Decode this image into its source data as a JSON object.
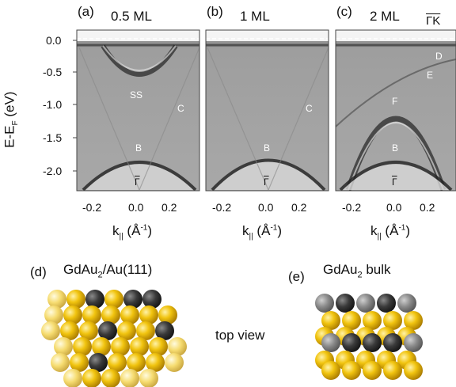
{
  "figure": {
    "panels": [
      {
        "id": "a",
        "tag": "(a)",
        "coverage": "0.5 ML",
        "labels": {
          "ss": "SS",
          "c": "C",
          "b": "B",
          "gamma": "Γ"
        }
      },
      {
        "id": "b",
        "tag": "(b)",
        "coverage": "1 ML",
        "labels": {
          "c": "C",
          "b": "B",
          "gamma": "Γ"
        }
      },
      {
        "id": "c",
        "tag": "(c)",
        "coverage": "2 ML",
        "labels": {
          "d": "D",
          "e": "E",
          "f": "F",
          "b": "B",
          "gamma": "Γ",
          "direction": "ΓK"
        }
      }
    ],
    "y_axis": {
      "label_main": "E-E",
      "label_sub": "F",
      "label_unit": " (eV)",
      "ticks": [
        "0.0",
        "-0.5",
        "-1.0",
        "-1.5",
        "-2.0"
      ]
    },
    "x_axis": {
      "label_main": "k",
      "label_sub": "||",
      "label_unit": " (Å",
      "label_exp": "-1",
      "label_close": ")",
      "ticks": [
        "-0.2",
        "0.0",
        "0.2"
      ]
    },
    "structures": [
      {
        "tag": "(d)",
        "title_main": "GdAu",
        "title_sub": "2",
        "title_rest": "/Au(111)"
      },
      {
        "tag": "(e)",
        "title_main": "GdAu",
        "title_sub": "2",
        "title_rest": " bulk"
      }
    ],
    "center_text": "top view"
  },
  "colors": {
    "gold": "#f1c40f",
    "gold_dark": "#c79600",
    "gold_light": "#f6d860",
    "gd": "#3a3a3a",
    "gd_light": "#8a8a8a"
  }
}
